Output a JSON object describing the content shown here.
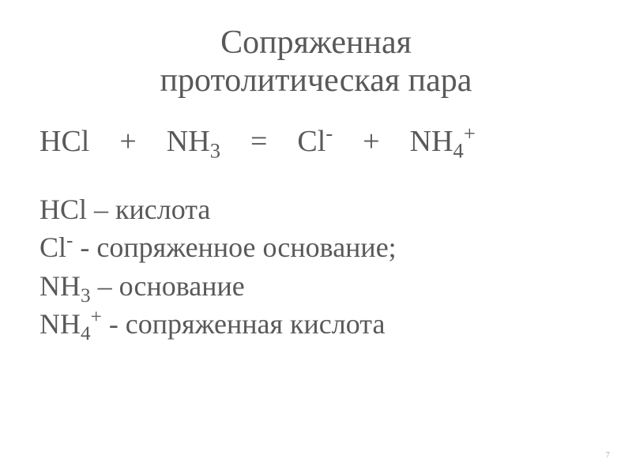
{
  "title": {
    "line1": "Сопряженная",
    "line2": "протолитическая пара"
  },
  "equation": {
    "reactant1_base": "HCl",
    "plus1": "+",
    "reactant2_base": "NH",
    "reactant2_sub": "3",
    "equals": "=",
    "product1_base": "Cl",
    "product1_sup": "-",
    "plus2": "+",
    "product2_base": "NH",
    "product2_sub": "4",
    "product2_sup": "+"
  },
  "definitions": {
    "line1_formula": "HCl",
    "line1_text": " – кислота",
    "line2_formula_base": "Cl",
    "line2_formula_sup": "-",
    "line2_text": " - сопряженное основание;",
    "line3_formula_base": "NH",
    "line3_formula_sub": "3",
    "line3_text": " – основание",
    "line4_formula_base": "NH",
    "line4_formula_sub": "4",
    "line4_formula_sup": "+",
    "line4_text": " - сопряженная кислота"
  },
  "page_number": "7",
  "colors": {
    "background": "#ffffff",
    "text": "#595959",
    "page_num": "#b0b0b0"
  },
  "typography": {
    "title_fontsize": 42,
    "equation_fontsize": 38,
    "definition_fontsize": 36,
    "page_num_fontsize": 11,
    "font_family": "Times New Roman"
  }
}
